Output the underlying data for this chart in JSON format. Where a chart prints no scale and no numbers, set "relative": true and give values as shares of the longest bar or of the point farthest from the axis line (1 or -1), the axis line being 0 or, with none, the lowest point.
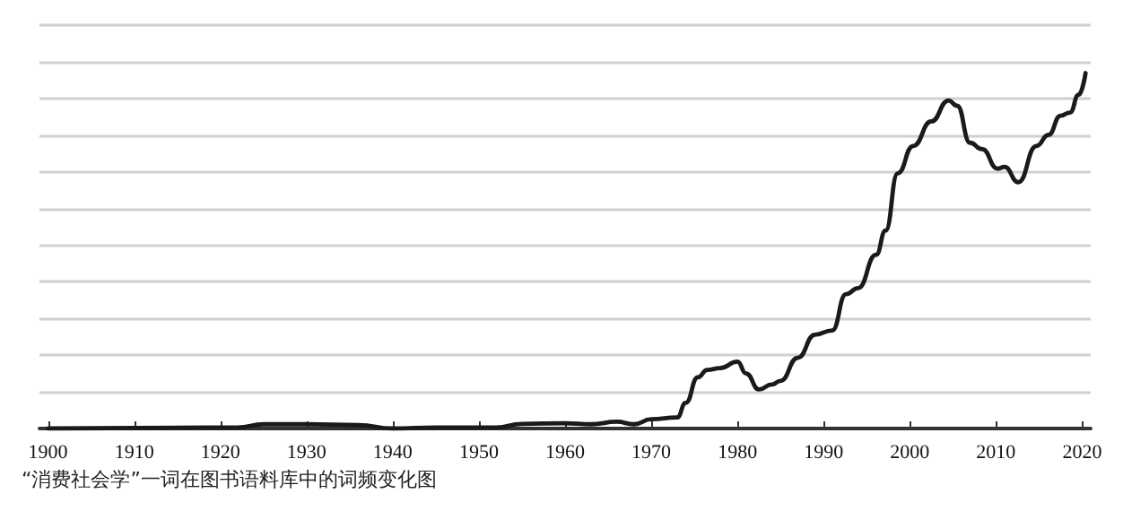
{
  "chart_data": {
    "type": "line",
    "relative": true,
    "annotations": [
      "“消费社会学”一词在图书语料库中的词频变化图"
    ],
    "xlim": [
      1899,
      2021
    ],
    "xticks": [
      1900,
      1910,
      1920,
      1930,
      1940,
      1950,
      1960,
      1970,
      1980,
      1990,
      2000,
      2010,
      2020
    ],
    "grid": "y",
    "tick_labels": "x",
    "marker": "none",
    "line_style": "solid",
    "series": [
      {
        "color": "#1a1a1a",
        "x": [
          1900,
          1915,
          1922,
          1925,
          1930,
          1936,
          1940,
          1945,
          1952,
          1955,
          1960,
          1963,
          1966,
          1968,
          1970,
          1973,
          1974,
          1975.4,
          1976.5,
          1978,
          1980,
          1981,
          1982.5,
          1984,
          1985,
          1987,
          1989,
          1991,
          1992.6,
          1994,
          1996.1,
          1997.2,
          1998.6,
          2000.4,
          2002.5,
          2004.5,
          2005.5,
          2007,
          2008.4,
          2010.2,
          2011,
          2012.6,
          2014.7,
          2016.1,
          2017.5,
          2018.6,
          2019.6,
          2020.4
        ],
        "values": [
          0,
          0.002,
          0.003,
          0.012,
          0.012,
          0.01,
          0,
          0.003,
          0.003,
          0.013,
          0.015,
          0.012,
          0.019,
          0.012,
          0.026,
          0.031,
          0.072,
          0.144,
          0.165,
          0.17,
          0.188,
          0.155,
          0.11,
          0.124,
          0.134,
          0.199,
          0.264,
          0.276,
          0.378,
          0.395,
          0.489,
          0.557,
          0.718,
          0.795,
          0.864,
          0.923,
          0.908,
          0.804,
          0.786,
          0.731,
          0.736,
          0.693,
          0.795,
          0.826,
          0.88,
          0.889,
          0.939,
          1
        ]
      }
    ]
  }
}
